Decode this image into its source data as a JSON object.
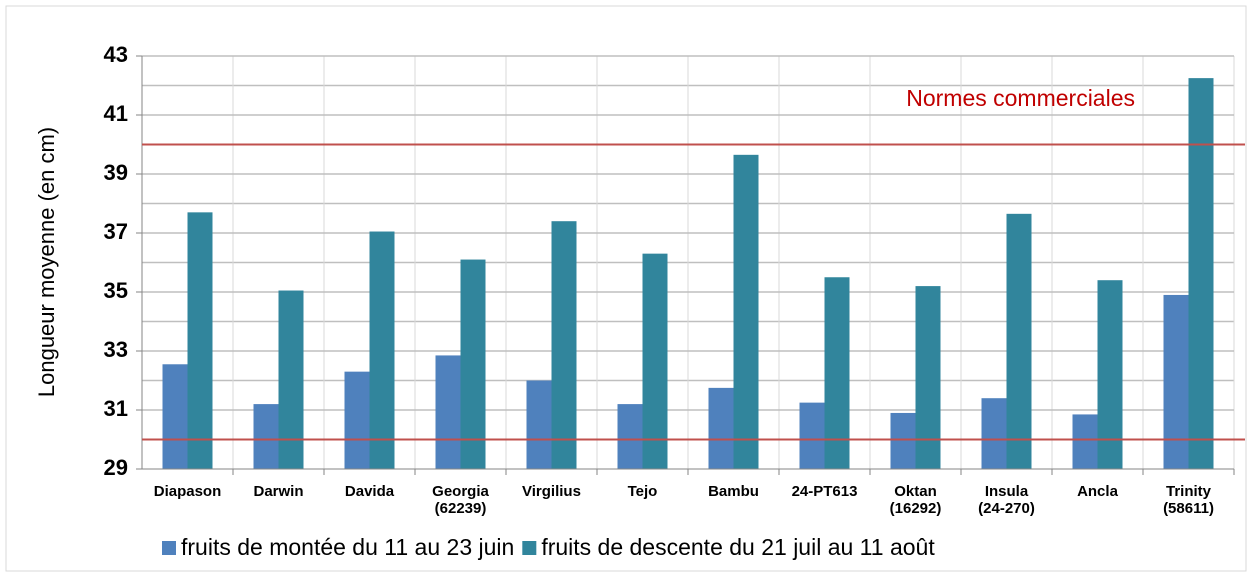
{
  "chart_data": {
    "type": "bar",
    "y_label": "Longueur moyenne (en cm)",
    "categories": [
      "Diapason",
      "Darwin",
      "Davida",
      "Georgia\n(62239)",
      "Virgilius",
      "Tejo",
      "Bambu",
      "24-PT613",
      "Oktan\n(16292)",
      "Insula\n(24-270)",
      "Ancla",
      "Trinity\n(58611)"
    ],
    "series": [
      {
        "name": "fruits de montée du 11 au 23 juin",
        "color": "#4f81bd",
        "values": [
          32.55,
          31.2,
          32.3,
          32.85,
          32.0,
          31.2,
          31.75,
          31.25,
          30.9,
          31.4,
          30.85,
          34.9
        ]
      },
      {
        "name": "fruits de descente du 21 juil au 11 août",
        "color": "#31859c",
        "values": [
          37.7,
          35.05,
          37.05,
          36.1,
          37.4,
          36.3,
          39.65,
          35.5,
          35.2,
          37.65,
          35.4,
          42.25
        ]
      }
    ],
    "ylim": [
      29,
      43
    ],
    "yticks": [
      29,
      31,
      33,
      35,
      37,
      39,
      41,
      43
    ],
    "grid": true,
    "reference_lines": {
      "values": [
        30,
        40
      ],
      "color": "#c0504d",
      "label": "Normes commerciales",
      "label_color": "#c00000"
    },
    "legend": "bottom"
  }
}
